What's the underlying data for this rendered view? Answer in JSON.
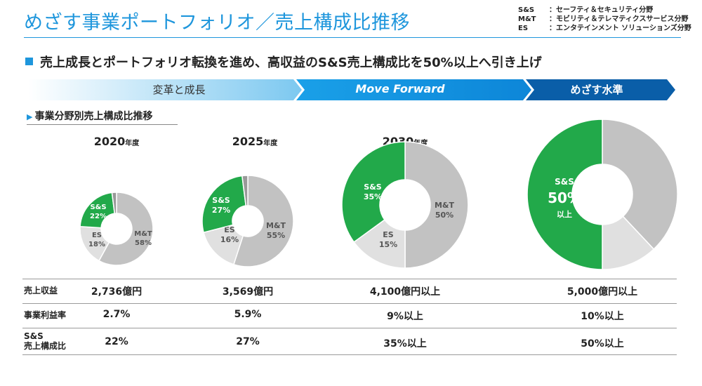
{
  "title": "めざす事業ポートフォリオ／売上構成比推移",
  "legend": [
    {
      "key": "S&S",
      "desc": "：セーフティ＆セキュリティ分野"
    },
    {
      "key": "M&T",
      "desc": "：モビリティ＆テレマティクスサービス分野"
    },
    {
      "key": "ES",
      "desc": "：エンタテインメント ソリューションズ分野"
    }
  ],
  "subtitle": "売上成長とポートフォリオ転換を進め、高収益のS&S売上構成比を50%以上へ引き上げ",
  "phases": [
    "変革と成長",
    "Move Forward",
    "めざす水準"
  ],
  "section_label": "事業分野別売上構成比推移",
  "years": [
    {
      "year": "2020",
      "suffix": "年度"
    },
    {
      "year": "2025",
      "suffix": "年度"
    },
    {
      "year": "2030",
      "suffix": "年度"
    }
  ],
  "colors": {
    "ss": "#22a94a",
    "mt": "#c2c2c2",
    "es": "#e0e0e0",
    "other": "#999999",
    "accent": "#1e96dc",
    "band_light": "#bfe3f7",
    "band_mid": "#1196e0",
    "band_dark": "#0a5ea8"
  },
  "chart_data": [
    {
      "type": "pie",
      "title": "2020年度",
      "slices": [
        {
          "name": "M&T",
          "value": 58,
          "label": "58%"
        },
        {
          "name": "ES",
          "value": 18,
          "label": "18%"
        },
        {
          "name": "S&S",
          "value": 22,
          "label": "22%"
        },
        {
          "name": "",
          "value": 2
        }
      ]
    },
    {
      "type": "pie",
      "title": "2025年度",
      "slices": [
        {
          "name": "M&T",
          "value": 55,
          "label": "55%"
        },
        {
          "name": "ES",
          "value": 16,
          "label": "16%"
        },
        {
          "name": "S&S",
          "value": 27,
          "label": "27%"
        },
        {
          "name": "",
          "value": 2
        }
      ]
    },
    {
      "type": "pie",
      "title": "2030年度",
      "slices": [
        {
          "name": "M&T",
          "value": 50,
          "label": "50%"
        },
        {
          "name": "ES",
          "value": 15,
          "label": "15%"
        },
        {
          "name": "S&S",
          "value": 35,
          "label": "35%"
        }
      ]
    },
    {
      "type": "pie",
      "title": "めざす水準",
      "slices": [
        {
          "name": "",
          "value": 38
        },
        {
          "name": "",
          "value": 12
        },
        {
          "name": "S&S",
          "value": 50,
          "label": "50%",
          "sublabel": "以上"
        }
      ]
    }
  ],
  "table": {
    "rows": [
      {
        "label": "売上収益",
        "values": [
          "2,736億円",
          "3,569億円",
          "4,100億円以上",
          "5,000億円以上"
        ]
      },
      {
        "label": "事業利益率",
        "values": [
          "2.7%",
          "5.9%",
          "9%以上",
          "10%以上"
        ]
      },
      {
        "label": "S&S\n売上構成比",
        "values": [
          "22%",
          "27%",
          "35%以上",
          "50%以上"
        ]
      }
    ]
  }
}
